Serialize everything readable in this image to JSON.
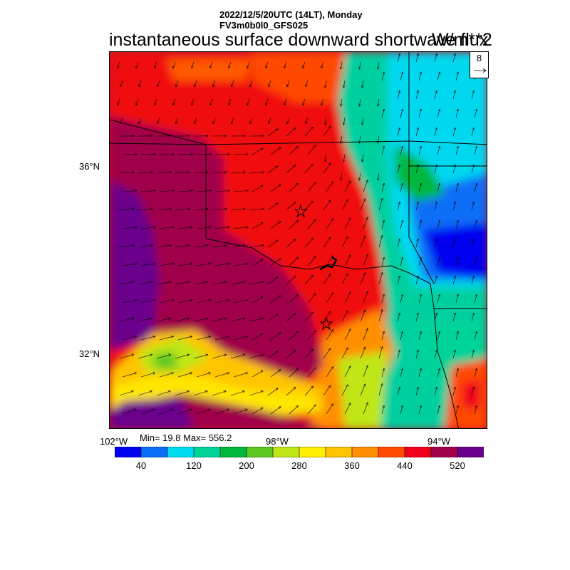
{
  "header": {
    "line1": "2022/12/5/20UTC (14LT), Monday",
    "line2": "FV3m0b0l0_GFS025"
  },
  "title": {
    "field": "instantaneous surface downward shortwave flux",
    "units": "W/m**2"
  },
  "vector_key": {
    "label": "8"
  },
  "axes": {
    "lat_labels": [
      "36°N",
      "32°N"
    ],
    "lon_labels": [
      "102°W",
      "98°W",
      "94°W"
    ]
  },
  "stats": {
    "text": "Min= 19.8 Max= 556.2"
  },
  "colorbar": {
    "colors": [
      "#0000f0",
      "#0a6ef7",
      "#00dcf0",
      "#00d39a",
      "#00b83c",
      "#5cc820",
      "#bfe619",
      "#fff000",
      "#ffc400",
      "#ff8f00",
      "#ff4a00",
      "#f0001c",
      "#a0004a",
      "#6a008c"
    ],
    "labels": [
      "40",
      "120",
      "200",
      "280",
      "360",
      "440",
      "520"
    ]
  },
  "markers": {
    "stars": 2
  }
}
